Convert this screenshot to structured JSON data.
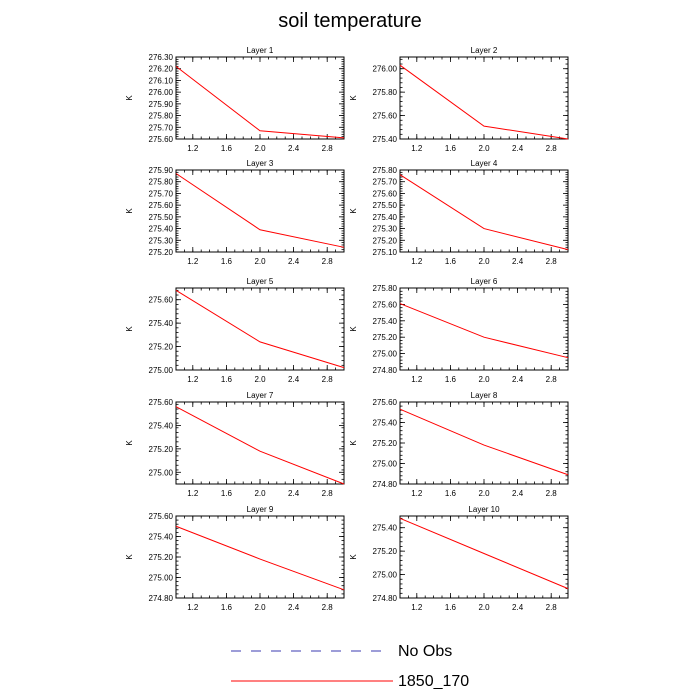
{
  "title": "soil temperature",
  "colors": {
    "series": "#ff0000",
    "obs": "#3b3bb0",
    "axis": "#000000"
  },
  "legend": {
    "placement": "bottom-center",
    "entries": [
      {
        "label": "No Obs",
        "style": "dashed",
        "color": "#3b3bb0"
      },
      {
        "label": "1850_170",
        "style": "solid",
        "color": "#ff0000"
      }
    ]
  },
  "chart_data": [
    {
      "type": "line",
      "title": "Layer 1",
      "ylabel": "K",
      "xlim": [
        1,
        3
      ],
      "xticks": [
        "1.2",
        "1.6",
        "2.0",
        "2.4",
        "2.8"
      ],
      "ylim": [
        275.6,
        276.3
      ],
      "yticks": [
        "275.60",
        "275.70",
        "275.80",
        "275.90",
        "276.00",
        "276.10",
        "276.20",
        "276.30"
      ],
      "series": [
        {
          "name": "1850_170",
          "x": [
            1,
            2,
            3
          ],
          "values": [
            276.22,
            275.67,
            275.61
          ]
        }
      ]
    },
    {
      "type": "line",
      "title": "Layer 2",
      "ylabel": "K",
      "xlim": [
        1,
        3
      ],
      "xticks": [
        "1.2",
        "1.6",
        "2.0",
        "2.4",
        "2.8"
      ],
      "ylim": [
        275.4,
        276.1
      ],
      "yticks": [
        "275.40",
        "275.60",
        "275.80",
        "276.00"
      ],
      "series": [
        {
          "name": "1850_170",
          "x": [
            1,
            2,
            3
          ],
          "values": [
            276.03,
            275.51,
            275.4
          ]
        }
      ]
    },
    {
      "type": "line",
      "title": "Layer 3",
      "ylabel": "K",
      "xlim": [
        1,
        3
      ],
      "xticks": [
        "1.2",
        "1.6",
        "2.0",
        "2.4",
        "2.8"
      ],
      "ylim": [
        275.2,
        275.9
      ],
      "yticks": [
        "275.20",
        "275.30",
        "275.40",
        "275.50",
        "275.60",
        "275.70",
        "275.80",
        "275.90"
      ],
      "series": [
        {
          "name": "1850_170",
          "x": [
            1,
            2,
            3
          ],
          "values": [
            275.87,
            275.39,
            275.24
          ]
        }
      ]
    },
    {
      "type": "line",
      "title": "Layer 4",
      "ylabel": "K",
      "xlim": [
        1,
        3
      ],
      "xticks": [
        "1.2",
        "1.6",
        "2.0",
        "2.4",
        "2.8"
      ],
      "ylim": [
        275.1,
        275.8
      ],
      "yticks": [
        "275.10",
        "275.20",
        "275.30",
        "275.40",
        "275.50",
        "275.60",
        "275.70",
        "275.80"
      ],
      "series": [
        {
          "name": "1850_170",
          "x": [
            1,
            2,
            3
          ],
          "values": [
            275.76,
            275.3,
            275.12
          ]
        }
      ]
    },
    {
      "type": "line",
      "title": "Layer 5",
      "ylabel": "K",
      "xlim": [
        1,
        3
      ],
      "xticks": [
        "1.2",
        "1.6",
        "2.0",
        "2.4",
        "2.8"
      ],
      "ylim": [
        275.0,
        275.7
      ],
      "yticks": [
        "275.00",
        "275.20",
        "275.40",
        "275.60"
      ],
      "series": [
        {
          "name": "1850_170",
          "x": [
            1,
            2,
            3
          ],
          "values": [
            275.68,
            275.24,
            275.02
          ]
        }
      ]
    },
    {
      "type": "line",
      "title": "Layer 6",
      "ylabel": "K",
      "xlim": [
        1,
        3
      ],
      "xticks": [
        "1.2",
        "1.6",
        "2.0",
        "2.4",
        "2.8"
      ],
      "ylim": [
        274.8,
        275.8
      ],
      "yticks": [
        "274.80",
        "275.00",
        "275.20",
        "275.40",
        "275.60",
        "275.80"
      ],
      "series": [
        {
          "name": "1850_170",
          "x": [
            1,
            2,
            3
          ],
          "values": [
            275.61,
            275.2,
            274.95
          ]
        }
      ]
    },
    {
      "type": "line",
      "title": "Layer 7",
      "ylabel": "K",
      "xlim": [
        1,
        3
      ],
      "xticks": [
        "1.2",
        "1.6",
        "2.0",
        "2.4",
        "2.8"
      ],
      "ylim": [
        274.9,
        275.6
      ],
      "yticks": [
        "275.00",
        "275.20",
        "275.40",
        "275.60"
      ],
      "series": [
        {
          "name": "1850_170",
          "x": [
            1,
            2,
            3
          ],
          "values": [
            275.56,
            275.18,
            274.9
          ]
        }
      ]
    },
    {
      "type": "line",
      "title": "Layer 8",
      "ylabel": "K",
      "xlim": [
        1,
        3
      ],
      "xticks": [
        "1.2",
        "1.6",
        "2.0",
        "2.4",
        "2.8"
      ],
      "ylim": [
        274.8,
        275.6
      ],
      "yticks": [
        "274.80",
        "275.00",
        "275.20",
        "275.40",
        "275.60"
      ],
      "series": [
        {
          "name": "1850_170",
          "x": [
            1,
            2,
            3
          ],
          "values": [
            275.53,
            275.18,
            274.89
          ]
        }
      ]
    },
    {
      "type": "line",
      "title": "Layer 9",
      "ylabel": "K",
      "xlim": [
        1,
        3
      ],
      "xticks": [
        "1.2",
        "1.6",
        "2.0",
        "2.4",
        "2.8"
      ],
      "ylim": [
        274.8,
        275.6
      ],
      "yticks": [
        "274.80",
        "275.00",
        "275.20",
        "275.40",
        "275.60"
      ],
      "series": [
        {
          "name": "1850_170",
          "x": [
            1,
            2,
            3
          ],
          "values": [
            275.5,
            275.18,
            274.88
          ]
        }
      ]
    },
    {
      "type": "line",
      "title": "Layer 10",
      "ylabel": "K",
      "xlim": [
        1,
        3
      ],
      "xticks": [
        "1.2",
        "1.6",
        "2.0",
        "2.4",
        "2.8"
      ],
      "ylim": [
        274.8,
        275.5
      ],
      "yticks": [
        "274.80",
        "275.00",
        "275.20",
        "275.40"
      ],
      "series": [
        {
          "name": "1850_170",
          "x": [
            1,
            2,
            3
          ],
          "values": [
            275.48,
            275.18,
            274.88
          ]
        }
      ]
    }
  ]
}
